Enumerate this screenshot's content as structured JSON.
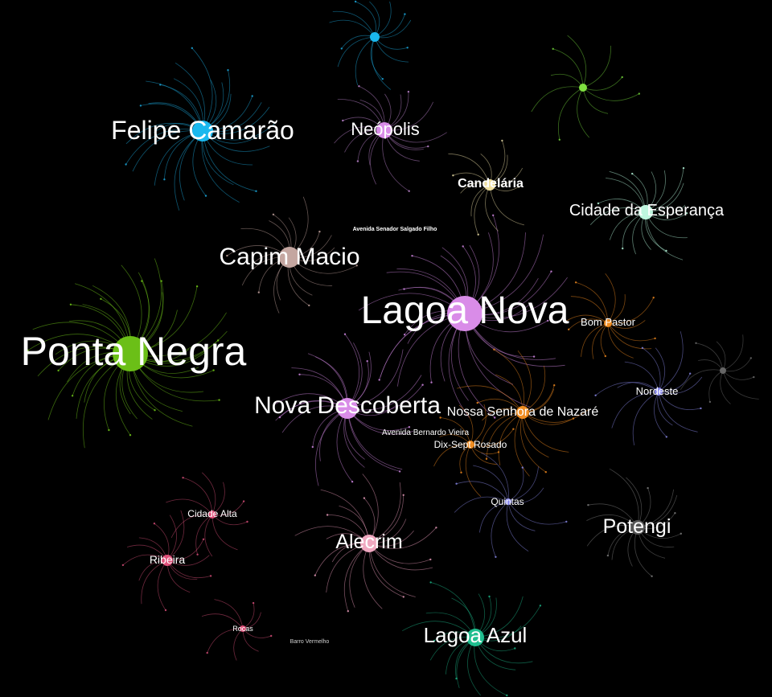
{
  "graph": {
    "background": "#000000",
    "hubs": [
      {
        "id": "ponta-negra",
        "label": "Ponta Negra",
        "color": "#6bbf17",
        "size": "xl"
      },
      {
        "id": "lagoa-nova",
        "label": "Lagoa Nova",
        "color": "#d98ce8",
        "size": "xl"
      },
      {
        "id": "felipe-camarao",
        "label": "Felipe Camarão",
        "color": "#1ab8ee",
        "size": "l"
      },
      {
        "id": "capim-macio",
        "label": "Capim Macio",
        "color": "#c4a6a0",
        "size": "l"
      },
      {
        "id": "nova-descoberta",
        "label": "Nova Descoberta",
        "color": "#d98ce8",
        "size": "l"
      },
      {
        "id": "neopolis",
        "label": "Neópolis",
        "color": "#d98ce8",
        "size": "m"
      },
      {
        "id": "candelaria",
        "label": "Candelária",
        "color": "#f0e0a0",
        "size": "s"
      },
      {
        "id": "cidade-da-esperanca",
        "label": "Cidade da Esperança",
        "color": "#bff6df",
        "size": "m"
      },
      {
        "id": "bom-pastor",
        "label": "Bom Pastor",
        "color": "#f08c20",
        "size": "s"
      },
      {
        "id": "nossa-senhora-de-nazare",
        "label": "Nossa Senhora de Nazaré",
        "color": "#f08c20",
        "size": "s"
      },
      {
        "id": "dix-sept-rosado",
        "label": "Dix-Sept Rosado",
        "color": "#f08c20",
        "size": "s"
      },
      {
        "id": "nordeste",
        "label": "Nordeste",
        "color": "#8c8cf0",
        "size": "s"
      },
      {
        "id": "quintas",
        "label": "Quintas",
        "color": "#8c8cf0",
        "size": "s"
      },
      {
        "id": "potengi",
        "label": "Potengi",
        "color": "#555555",
        "size": "m"
      },
      {
        "id": "alecrim",
        "label": "Alecrim",
        "color": "#f0a8c0",
        "size": "m"
      },
      {
        "id": "lagoa-azul",
        "label": "Lagoa Azul",
        "color": "#1fbf8f",
        "size": "m"
      },
      {
        "id": "cidade-alta",
        "label": "Cidade Alta",
        "color": "#e0507a",
        "size": "s"
      },
      {
        "id": "ribeira",
        "label": "Ribeira",
        "color": "#e0507a",
        "size": "s"
      },
      {
        "id": "rocas",
        "label": "Rocas",
        "color": "#e0507a",
        "size": "s"
      },
      {
        "id": "top-blue",
        "label": "",
        "color": "#1ab8ee",
        "size": "s"
      },
      {
        "id": "top-green",
        "label": "",
        "color": "#7fe040",
        "size": "s"
      },
      {
        "id": "right-gray",
        "label": "",
        "color": "#666666",
        "size": "s"
      }
    ],
    "street_labels": [
      {
        "id": "avenida-senador-salgado-filho",
        "label": "Avenida Senador Salgado Filho"
      },
      {
        "id": "avenida-bernardo-vieira",
        "label": "Avenida Bernardo Vieira"
      },
      {
        "id": "barro-vermelho",
        "label": "Barro Vermelho"
      }
    ]
  }
}
